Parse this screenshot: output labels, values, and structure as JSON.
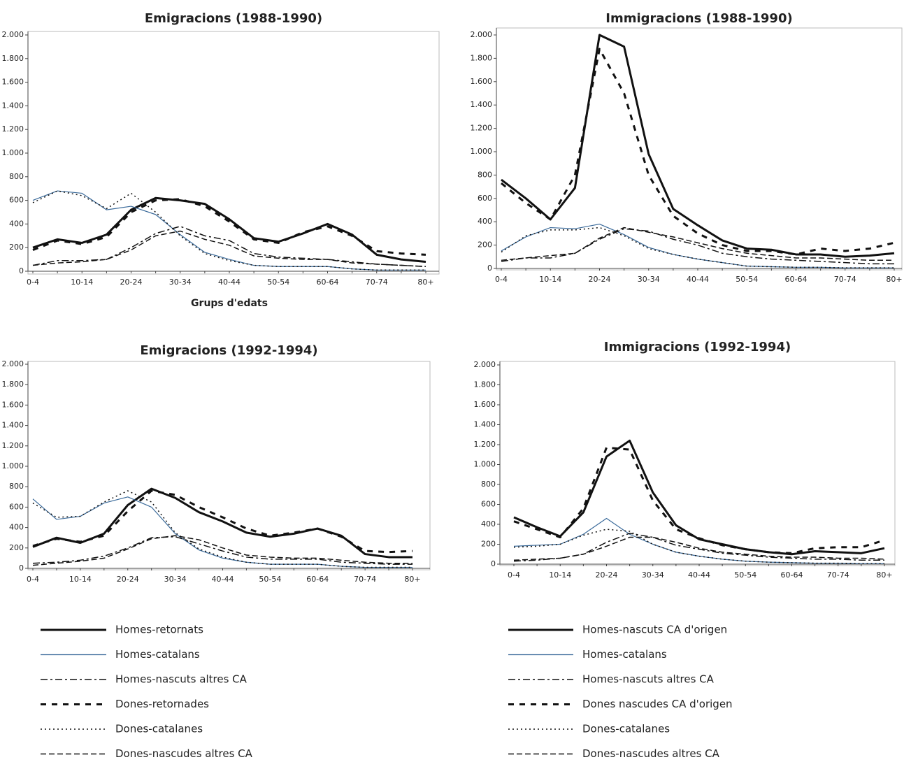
{
  "chart_data": [
    {
      "type": "line",
      "title": "Emigracions (1988-1990)",
      "xlabel": "Grups d'edats",
      "categories": [
        "0-4",
        null,
        "10-14",
        null,
        "20-24",
        null,
        "30-34",
        null,
        "40-44",
        null,
        "50-54",
        null,
        "60-64",
        null,
        "70-74",
        null,
        "80+"
      ],
      "ylim": [
        0,
        2000
      ],
      "yticks": [
        0,
        200,
        400,
        600,
        800,
        {
          "value": 1000,
          "label": "1.000"
        },
        {
          "value": 1200,
          "label": "1.200"
        },
        {
          "value": 1400,
          "label": "1.400"
        },
        {
          "value": 1600,
          "label": "1.600"
        },
        {
          "value": 1800,
          "label": "1.800"
        },
        {
          "value": 2000,
          "label": "2.000"
        }
      ],
      "series": [
        {
          "name": "Homes-retornats",
          "color": "#111111",
          "values": [
            200,
            270,
            240,
            310,
            520,
            620,
            600,
            570,
            440,
            280,
            250,
            320,
            400,
            310,
            140,
            100,
            80
          ]
        },
        {
          "name": "Homes-catalans",
          "color": "#3a6a9a",
          "values": [
            600,
            680,
            660,
            520,
            550,
            480,
            310,
            160,
            100,
            50,
            40,
            40,
            40,
            20,
            10,
            10,
            10
          ]
        },
        {
          "name": "Homes-nascuts altres CA",
          "color": "#111111",
          "values": [
            50,
            90,
            90,
            100,
            200,
            320,
            380,
            300,
            260,
            150,
            120,
            110,
            100,
            80,
            60,
            50,
            40
          ]
        },
        {
          "name": "Dones-retornades",
          "color": "#111111",
          "values": [
            180,
            260,
            230,
            290,
            500,
            600,
            610,
            550,
            420,
            270,
            240,
            330,
            380,
            300,
            170,
            150,
            140
          ]
        },
        {
          "name": "Dones-catalanes",
          "color": "#111111",
          "values": [
            580,
            680,
            640,
            530,
            660,
            500,
            300,
            150,
            90,
            50,
            40,
            40,
            40,
            20,
            10,
            10,
            10
          ]
        },
        {
          "name": "Dones-nascudes altres CA",
          "color": "#111111",
          "values": [
            50,
            70,
            80,
            100,
            180,
            300,
            340,
            270,
            220,
            130,
            110,
            100,
            100,
            70,
            60,
            50,
            40
          ]
        }
      ]
    },
    {
      "type": "line",
      "title": "Immigracions (1988-1990)",
      "categories": [
        "0-4",
        null,
        "10-14",
        null,
        "20-24",
        null,
        "30-34",
        null,
        "40-44",
        null,
        "50-54",
        null,
        "60-64",
        null,
        "70-74",
        null,
        "80+"
      ],
      "ylim": [
        0,
        2000
      ],
      "yticks": [
        0,
        200,
        400,
        600,
        800,
        {
          "value": 1000,
          "label": "1.000"
        },
        {
          "value": 1200,
          "label": "1.200"
        },
        {
          "value": 1400,
          "label": "1.400"
        },
        {
          "value": 1600,
          "label": "1.600"
        },
        {
          "value": 1800,
          "label": "1.800"
        },
        {
          "value": 2000,
          "label": "2.000"
        }
      ],
      "series": [
        {
          "name": "Homes-nascuts CA d'origen",
          "color": "#111111",
          "values": [
            760,
            600,
            420,
            690,
            2000,
            1900,
            980,
            510,
            370,
            240,
            170,
            160,
            120,
            120,
            100,
            110,
            130
          ]
        },
        {
          "name": "Homes-catalans",
          "color": "#3a6a9a",
          "values": [
            150,
            270,
            350,
            340,
            380,
            290,
            180,
            120,
            80,
            50,
            20,
            15,
            10,
            10,
            5,
            5,
            5
          ]
        },
        {
          "name": "Homes-nascuts altres CA",
          "color": "#111111",
          "values": [
            60,
            90,
            90,
            130,
            250,
            340,
            320,
            250,
            200,
            130,
            100,
            80,
            70,
            60,
            50,
            40,
            40
          ]
        },
        {
          "name": "Dones nascudes CA d'origen",
          "color": "#111111",
          "values": [
            730,
            560,
            420,
            800,
            1880,
            1500,
            800,
            450,
            300,
            200,
            150,
            150,
            120,
            170,
            150,
            170,
            220
          ]
        },
        {
          "name": "Dones-catalanes",
          "color": "#111111",
          "values": [
            140,
            280,
            330,
            330,
            350,
            280,
            170,
            120,
            80,
            50,
            20,
            15,
            10,
            10,
            5,
            5,
            5
          ]
        },
        {
          "name": "Dones-nascudes altres CA",
          "color": "#111111",
          "values": [
            70,
            90,
            110,
            130,
            260,
            350,
            310,
            270,
            220,
            170,
            130,
            110,
            90,
            90,
            80,
            70,
            70
          ]
        }
      ]
    },
    {
      "type": "line",
      "title": "Emigracions (1992-1994)",
      "categories": [
        "0-4",
        null,
        "10-14",
        null,
        "20-24",
        null,
        "30-34",
        null,
        "40-44",
        null,
        "50-54",
        null,
        "60-64",
        null,
        "70-74",
        null,
        "80+"
      ],
      "ylim": [
        0,
        2000
      ],
      "yticks": [
        0,
        200,
        400,
        600,
        800,
        {
          "value": 1000,
          "label": "1.000"
        },
        {
          "value": 1200,
          "label": "1.200"
        },
        {
          "value": 1400,
          "label": "1.400"
        },
        {
          "value": 1600,
          "label": "1.600"
        },
        {
          "value": 1800,
          "label": "1.800"
        },
        {
          "value": 2000,
          "label": "2.000"
        }
      ],
      "series": [
        {
          "color": "#111111",
          "values": [
            210,
            300,
            250,
            340,
            620,
            780,
            690,
            550,
            460,
            350,
            310,
            340,
            390,
            320,
            140,
            110,
            110
          ]
        },
        {
          "color": "#3a6a9a",
          "values": [
            680,
            480,
            510,
            640,
            700,
            600,
            340,
            180,
            100,
            60,
            40,
            40,
            40,
            20,
            10,
            10,
            10
          ]
        },
        {
          "color": "#111111",
          "values": [
            50,
            60,
            80,
            120,
            200,
            300,
            310,
            240,
            170,
            110,
            90,
            90,
            90,
            60,
            50,
            40,
            40
          ]
        },
        {
          "color": "#111111",
          "values": [
            220,
            290,
            260,
            320,
            560,
            760,
            720,
            600,
            500,
            390,
            320,
            350,
            390,
            310,
            170,
            160,
            170
          ]
        },
        {
          "color": "#111111",
          "values": [
            640,
            500,
            510,
            650,
            760,
            650,
            350,
            190,
            110,
            60,
            40,
            40,
            40,
            20,
            10,
            10,
            10
          ]
        },
        {
          "color": "#111111",
          "values": [
            30,
            50,
            70,
            100,
            190,
            290,
            320,
            280,
            200,
            130,
            110,
            100,
            100,
            80,
            60,
            50,
            50
          ]
        }
      ]
    },
    {
      "type": "line",
      "title": "Immigracions (1992-1994)",
      "categories": [
        "0-4",
        null,
        "10-14",
        null,
        "20-24",
        null,
        "30-34",
        null,
        "40-44",
        null,
        "50-54",
        null,
        "60-64",
        null,
        "70-74",
        null,
        "80+"
      ],
      "ylim": [
        0,
        2000
      ],
      "yticks": [
        0,
        200,
        400,
        600,
        800,
        {
          "value": 1000,
          "label": "1.000"
        },
        {
          "value": 1200,
          "label": "1.200"
        },
        {
          "value": 1400,
          "label": "1.400"
        },
        {
          "value": 1600,
          "label": "1.600"
        },
        {
          "value": 1800,
          "label": "1.800"
        },
        {
          "value": 2000,
          "label": "2.000"
        }
      ],
      "series": [
        {
          "color": "#111111",
          "values": [
            470,
            370,
            280,
            520,
            1080,
            1240,
            720,
            390,
            250,
            200,
            150,
            120,
            100,
            130,
            120,
            110,
            160
          ]
        },
        {
          "color": "#3a6a9a",
          "values": [
            180,
            190,
            200,
            300,
            460,
            300,
            200,
            120,
            80,
            50,
            30,
            20,
            15,
            10,
            10,
            5,
            5
          ]
        },
        {
          "color": "#111111",
          "values": [
            30,
            40,
            60,
            100,
            220,
            310,
            270,
            190,
            150,
            110,
            90,
            70,
            60,
            50,
            50,
            40,
            40
          ]
        },
        {
          "color": "#111111",
          "values": [
            430,
            350,
            270,
            560,
            1170,
            1150,
            640,
            350,
            260,
            190,
            150,
            120,
            110,
            160,
            170,
            170,
            240
          ]
        },
        {
          "color": "#111111",
          "values": [
            170,
            180,
            200,
            290,
            350,
            330,
            200,
            120,
            80,
            50,
            30,
            20,
            15,
            10,
            10,
            5,
            5
          ]
        },
        {
          "color": "#111111",
          "values": [
            40,
            50,
            60,
            100,
            180,
            270,
            270,
            220,
            160,
            120,
            100,
            80,
            70,
            70,
            60,
            60,
            50
          ]
        }
      ]
    }
  ]
}
